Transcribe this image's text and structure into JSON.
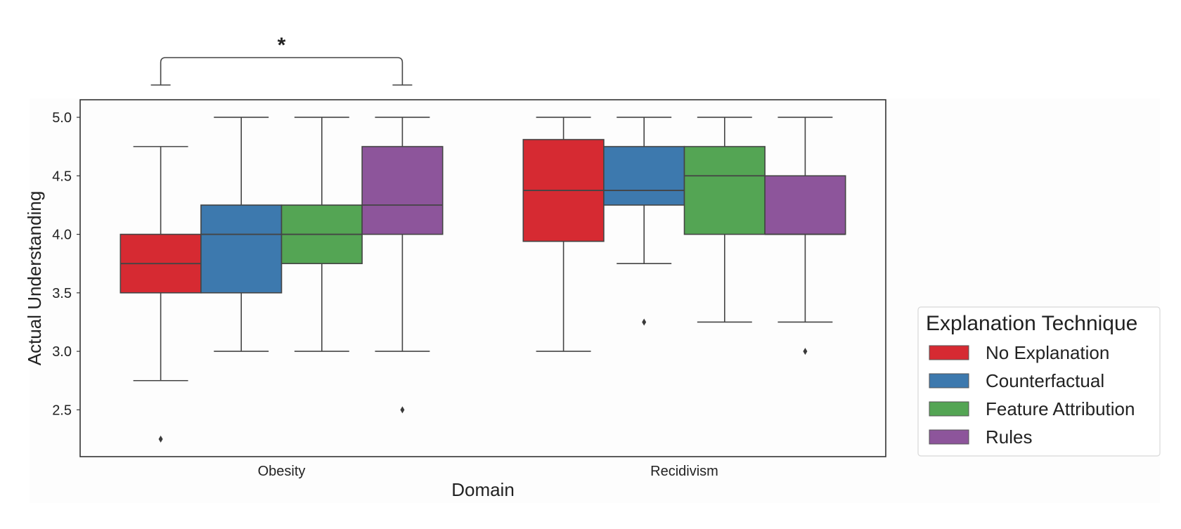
{
  "chart_data": {
    "type": "box",
    "xlabel": "Domain",
    "ylabel": "Actual Understanding",
    "categories": [
      "Obesity",
      "Recidivism"
    ],
    "ylim": [
      2.1,
      5.15
    ],
    "yticks": [
      "2.5",
      "3.0",
      "3.5",
      "4.0",
      "4.5",
      "5.0"
    ],
    "grid": false,
    "legend": {
      "title": "Explanation Technique",
      "placement": "right"
    },
    "series": [
      {
        "name": "No Explanation",
        "color": "#d62a32",
        "boxes": [
          {
            "category": "Obesity",
            "whisker_low": 2.75,
            "q1": 3.5,
            "median": 3.75,
            "q3": 4.0,
            "whisker_high": 4.75,
            "outliers": [
              2.25
            ]
          },
          {
            "category": "Recidivism",
            "whisker_low": 3.0,
            "q1": 3.94,
            "median": 4.375,
            "q3": 4.81,
            "whisker_high": 5.0,
            "outliers": []
          }
        ]
      },
      {
        "name": "Counterfactual",
        "color": "#3d79ae",
        "boxes": [
          {
            "category": "Obesity",
            "whisker_low": 3.0,
            "q1": 3.5,
            "median": 4.0,
            "q3": 4.25,
            "whisker_high": 5.0,
            "outliers": []
          },
          {
            "category": "Recidivism",
            "whisker_low": 3.75,
            "q1": 4.25,
            "median": 4.375,
            "q3": 4.75,
            "whisker_high": 5.0,
            "outliers": [
              3.25
            ]
          }
        ]
      },
      {
        "name": "Feature Attribution",
        "color": "#54a554",
        "boxes": [
          {
            "category": "Obesity",
            "whisker_low": 3.0,
            "q1": 3.75,
            "median": 4.0,
            "q3": 4.25,
            "whisker_high": 5.0,
            "outliers": []
          },
          {
            "category": "Recidivism",
            "whisker_low": 3.25,
            "q1": 4.0,
            "median": 4.5,
            "q3": 4.75,
            "whisker_high": 5.0,
            "outliers": []
          }
        ]
      },
      {
        "name": "Rules",
        "color": "#8d559b",
        "boxes": [
          {
            "category": "Obesity",
            "whisker_low": 3.0,
            "q1": 4.0,
            "median": 4.25,
            "q3": 4.75,
            "whisker_high": 5.0,
            "outliers": [
              2.5
            ]
          },
          {
            "category": "Recidivism",
            "whisker_low": 3.25,
            "q1": 4.0,
            "median": 4.0,
            "q3": 4.5,
            "whisker_high": 5.0,
            "outliers": [
              3.0
            ]
          }
        ]
      }
    ],
    "annotations": [
      {
        "type": "significance-bracket",
        "category": "Obesity",
        "from_series": "No Explanation",
        "to_series": "Rules",
        "label": "*"
      }
    ]
  }
}
